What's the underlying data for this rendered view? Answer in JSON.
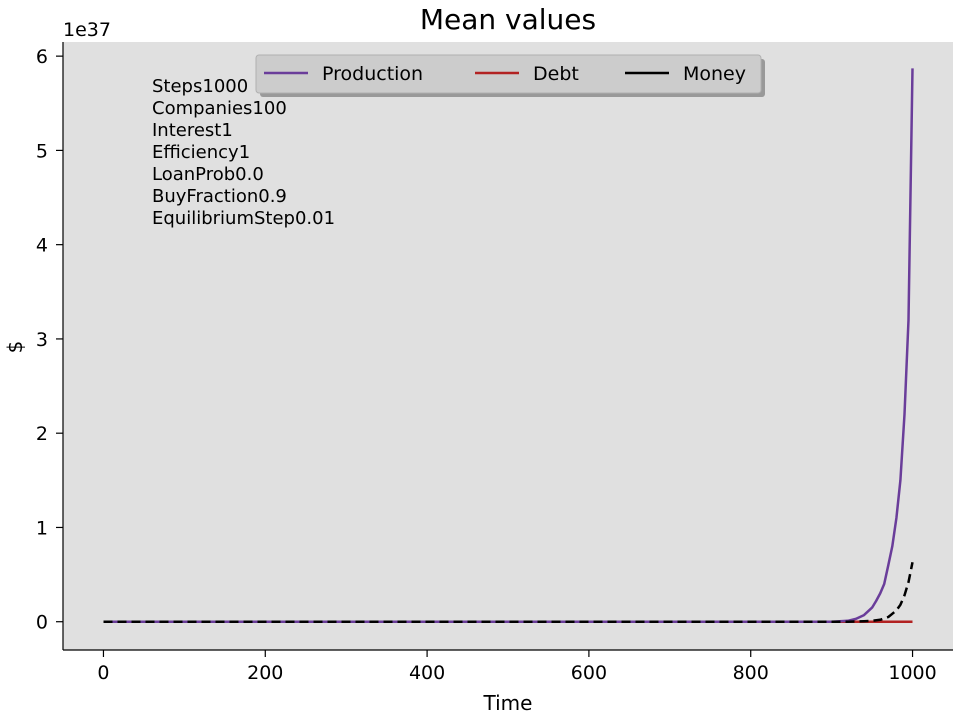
{
  "chart_data": {
    "type": "line",
    "title": "Mean values",
    "xlabel": "Time",
    "ylabel": "$",
    "y_offset_label": "1e37",
    "xlim": [
      -50,
      1050
    ],
    "ylim": [
      -0.3,
      6.15
    ],
    "xticks": [
      0,
      200,
      400,
      600,
      800,
      1000
    ],
    "yticks": [
      0,
      1,
      2,
      3,
      4,
      5,
      6
    ],
    "grid": false,
    "legend_placement": "top-center",
    "background_color": "#e0e0e0",
    "annotations": [
      "Steps1000",
      "Companies100",
      "Interest1",
      "Efficiency1",
      "LoanProb0.0",
      "BuyFraction0.9",
      "EquilibriumStep0.01"
    ],
    "series": [
      {
        "name": "Production",
        "color": "#6a3d9a",
        "style": "solid",
        "x": [
          0,
          900,
          920,
          930,
          940,
          950,
          955,
          960,
          965,
          970,
          975,
          980,
          985,
          990,
          995,
          1000
        ],
        "y": [
          0,
          0,
          0.01,
          0.03,
          0.07,
          0.15,
          0.22,
          0.3,
          0.4,
          0.6,
          0.8,
          1.1,
          1.5,
          2.2,
          3.2,
          5.87
        ]
      },
      {
        "name": "Debt",
        "color": "#b22222",
        "style": "solid",
        "x": [
          0,
          1000
        ],
        "y": [
          0,
          0
        ]
      },
      {
        "name": "Money",
        "color": "#000000",
        "style": "dashed",
        "x": [
          0,
          920,
          940,
          950,
          960,
          970,
          980,
          985,
          990,
          995,
          1000
        ],
        "y": [
          0,
          0,
          0.005,
          0.01,
          0.02,
          0.05,
          0.12,
          0.18,
          0.28,
          0.42,
          0.63
        ]
      }
    ]
  }
}
